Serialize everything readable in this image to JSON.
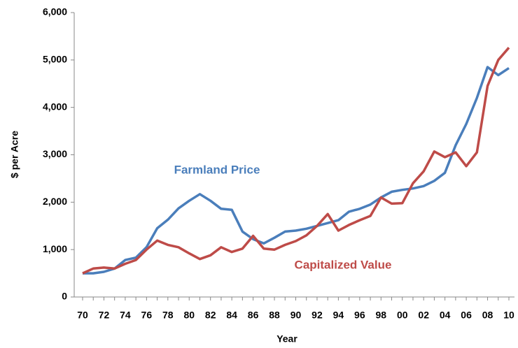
{
  "chart_data": {
    "type": "line",
    "x_label": "Year",
    "y_label": "$ per Acre",
    "categories": [
      "70",
      null,
      "72",
      null,
      "74",
      null,
      "76",
      null,
      "78",
      null,
      "80",
      null,
      "82",
      null,
      "84",
      null,
      "86",
      null,
      "88",
      null,
      "90",
      null,
      "92",
      null,
      "94",
      null,
      "96",
      null,
      "98",
      null,
      "00",
      null,
      "02",
      null,
      "04",
      null,
      "06",
      null,
      "08",
      null,
      "10"
    ],
    "series": [
      {
        "name": "Farmland Price",
        "color": "#4a7ebb",
        "values": [
          500,
          500,
          530,
          600,
          780,
          830,
          1050,
          1450,
          1630,
          1870,
          2030,
          2170,
          2030,
          1860,
          1840,
          1380,
          1220,
          1130,
          1250,
          1380,
          1400,
          1440,
          1500,
          1560,
          1620,
          1800,
          1860,
          1950,
          2100,
          2220,
          2260,
          2290,
          2340,
          2450,
          2620,
          3200,
          3650,
          4200,
          4850,
          4680,
          4830
        ]
      },
      {
        "name": "Capitalized Value",
        "color": "#be4b48",
        "values": [
          500,
          600,
          620,
          600,
          700,
          780,
          1000,
          1190,
          1100,
          1050,
          920,
          800,
          880,
          1050,
          950,
          1020,
          1290,
          1020,
          1000,
          1100,
          1180,
          1300,
          1500,
          1750,
          1400,
          1520,
          1620,
          1710,
          2100,
          1970,
          1980,
          2400,
          2650,
          3070,
          2950,
          3050,
          2760,
          3050,
          4450,
          5000,
          5260
        ]
      }
    ],
    "ylim": [
      0,
      6000
    ],
    "yticks": [
      0,
      {
        "value": 1000,
        "label": "1,000"
      },
      {
        "value": 2000,
        "label": "2,000"
      },
      {
        "value": 3000,
        "label": "3,000"
      },
      {
        "value": 4000,
        "label": "4,000"
      },
      {
        "value": 5000,
        "label": "5,000"
      },
      {
        "value": 6000,
        "label": "6,000"
      }
    ],
    "grid": false
  }
}
